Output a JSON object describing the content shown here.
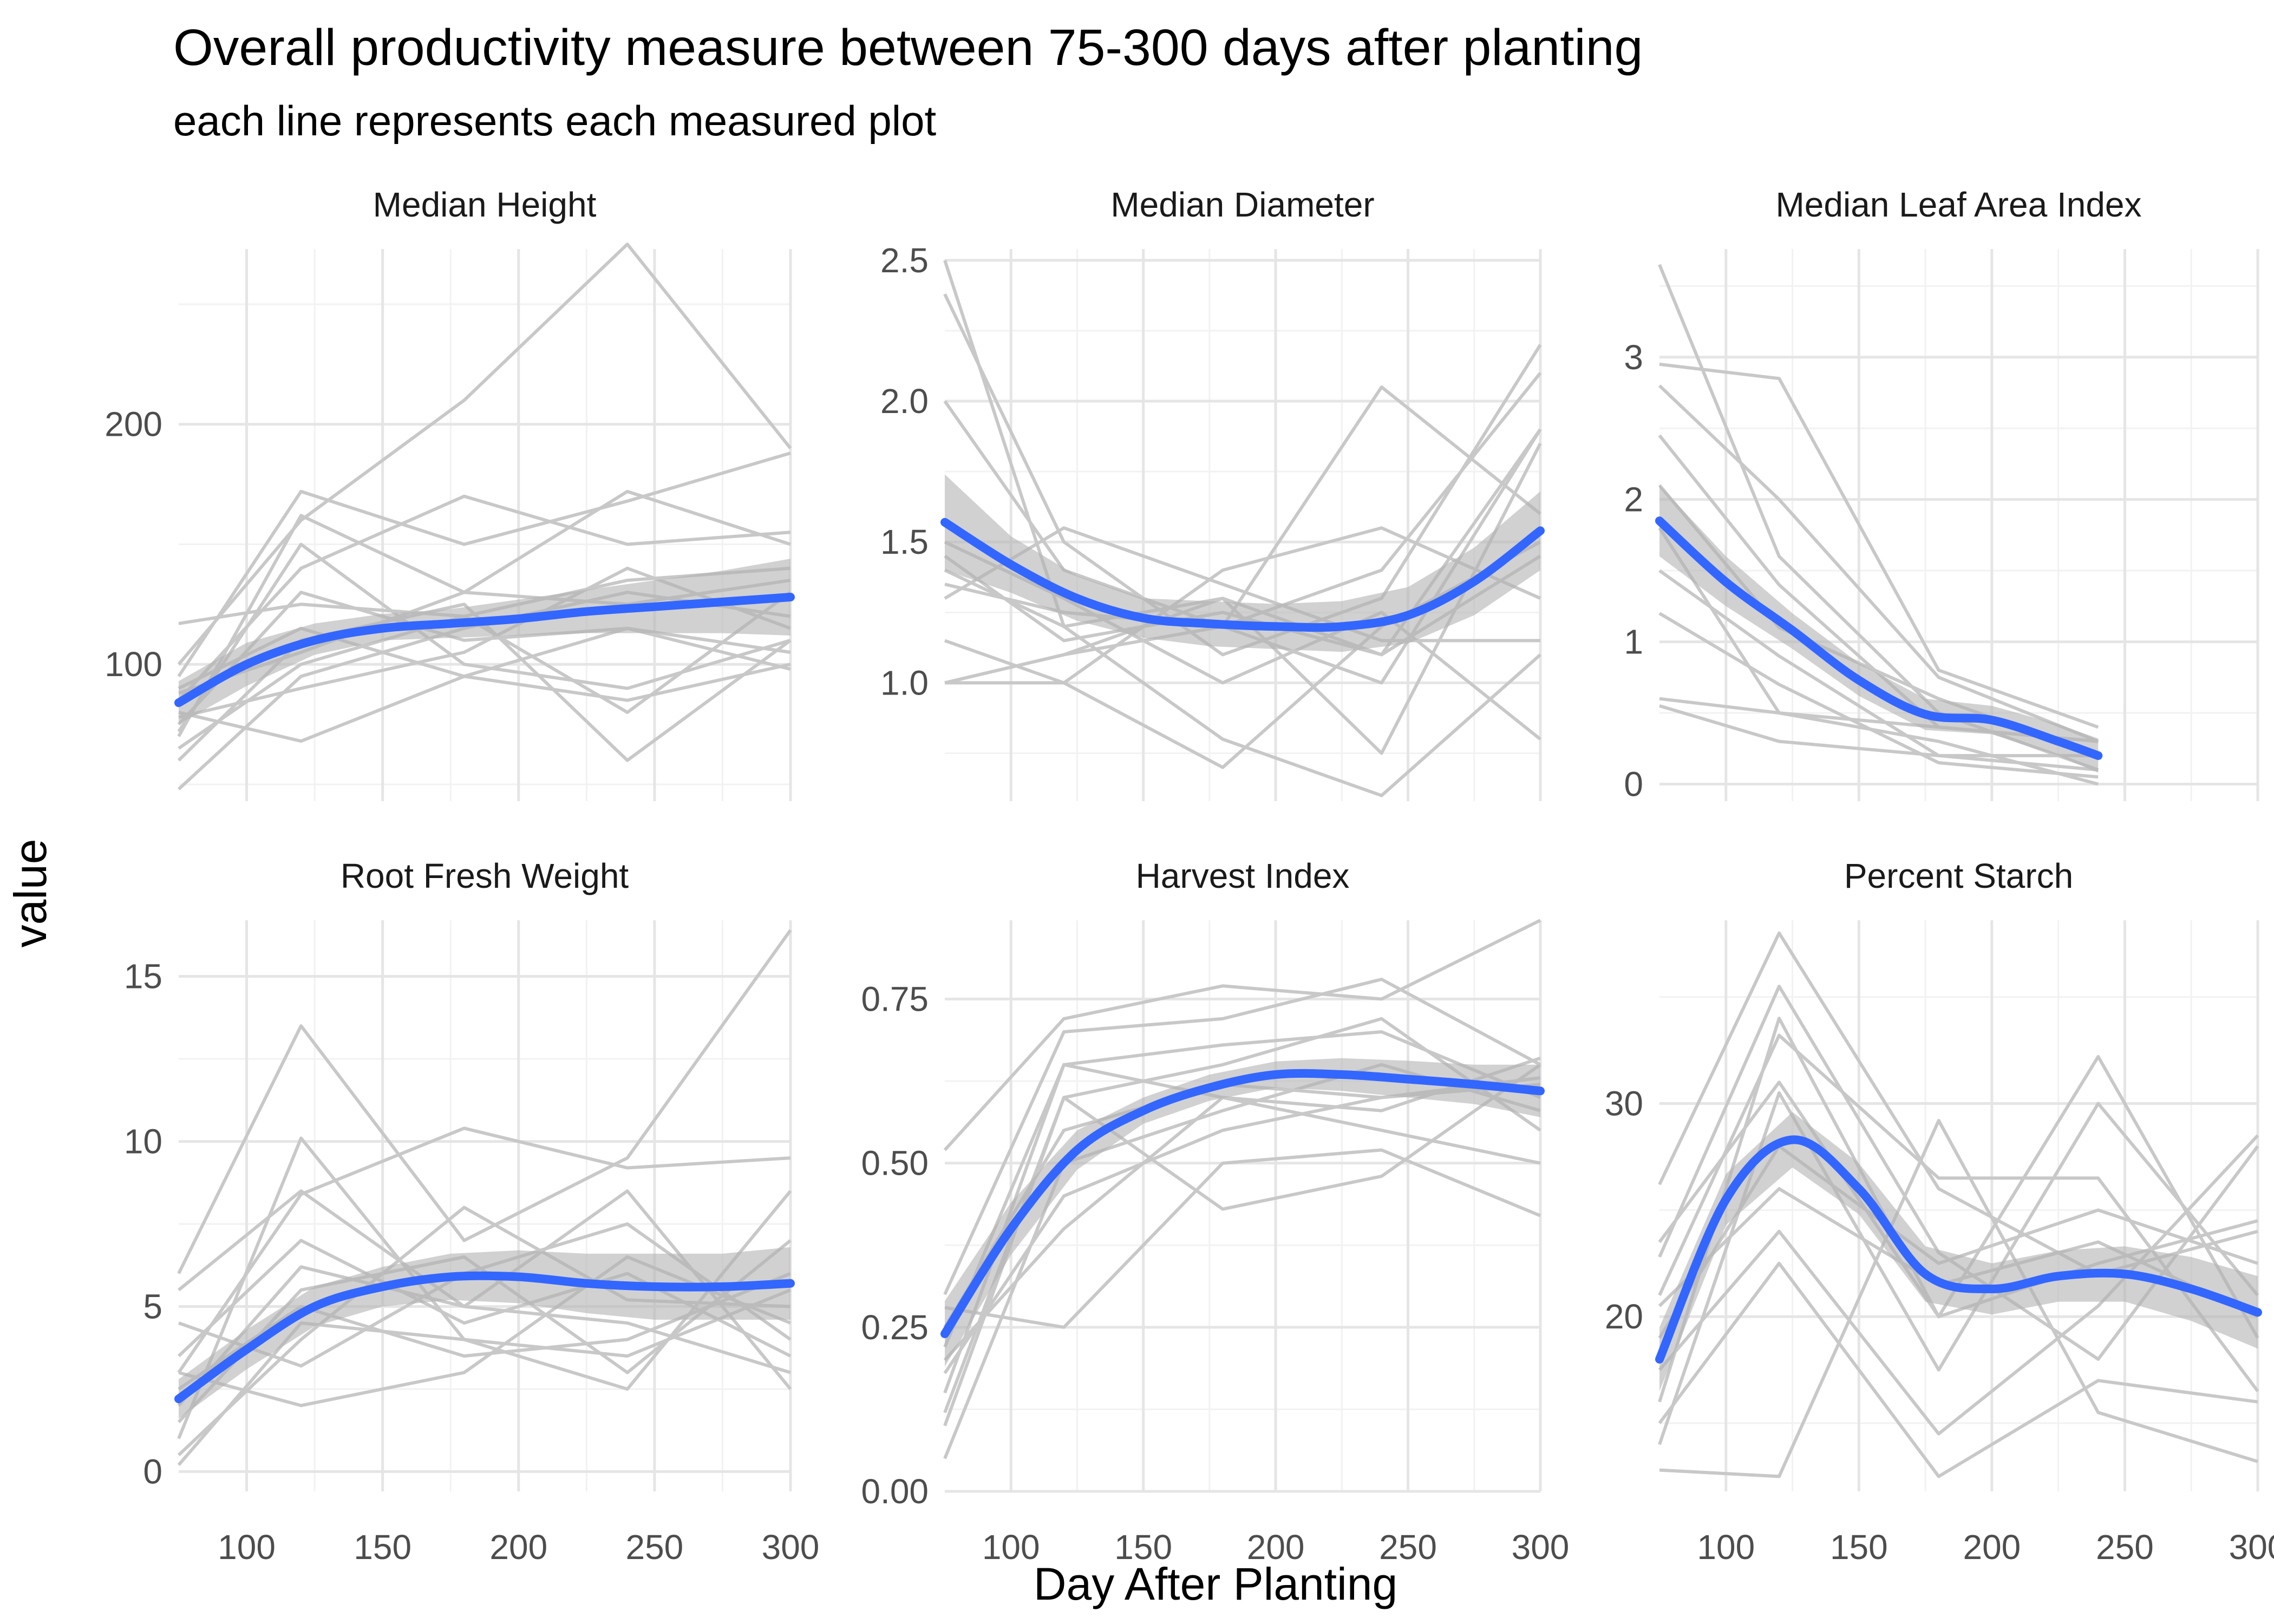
{
  "header": {
    "title": "Overall productivity measure between 75-300 days after planting",
    "subtitle": "each line represents each measured plot"
  },
  "axes": {
    "xlabel": "Day After Planting",
    "ylabel": "value"
  },
  "colors": {
    "plot_lines": "#c8c8c8",
    "smooth": "#3366ff",
    "ribbon": "#b3b3b3",
    "grid_major": "#e5e5e5",
    "grid_minor": "#f2f2f2"
  },
  "chart_data": [
    {
      "type": "line",
      "title": "Median Height",
      "x": [
        75,
        120,
        180,
        240,
        300
      ],
      "xlim": [
        75,
        300
      ],
      "ylim": [
        43,
        273
      ],
      "yticks": [
        100,
        200
      ],
      "ytick_labels": [
        "100",
        "200"
      ],
      "smooth": {
        "x": [
          75,
          100,
          125,
          150,
          175,
          200,
          225,
          250,
          275,
          300
        ],
        "y": [
          84,
          100,
          110,
          115,
          117,
          119,
          122,
          124,
          126,
          128
        ],
        "lower": [
          75,
          91,
          104,
          110,
          111,
          112,
          113,
          113,
          113,
          112
        ],
        "upper": [
          93,
          109,
          117,
          121,
          123,
          127,
          131,
          135,
          139,
          144
        ]
      },
      "series": [
        {
          "values": [
            100,
            160,
            210,
            275,
            190
          ]
        },
        {
          "values": [
            95,
            172,
            150,
            168,
            188
          ]
        },
        {
          "values": [
            70,
            162,
            130,
            172,
            150
          ]
        },
        {
          "values": [
            85,
            140,
            170,
            150,
            155
          ]
        },
        {
          "values": [
            117,
            125,
            120,
            135,
            140
          ]
        },
        {
          "values": [
            60,
            110,
            125,
            60,
            110
          ]
        },
        {
          "values": [
            48,
            95,
            115,
            130,
            120
          ]
        },
        {
          "values": [
            80,
            68,
            95,
            115,
            98
          ]
        },
        {
          "values": [
            75,
            130,
            110,
            115,
            105
          ]
        },
        {
          "values": [
            90,
            115,
            95,
            85,
            100
          ]
        },
        {
          "values": [
            65,
            100,
            120,
            80,
            130
          ]
        },
        {
          "values": [
            78,
            90,
            105,
            140,
            115
          ]
        },
        {
          "values": [
            72,
            150,
            100,
            90,
            110
          ]
        },
        {
          "values": [
            88,
            105,
            130,
            125,
            135
          ]
        }
      ]
    },
    {
      "type": "line",
      "title": "Median Diameter",
      "x": [
        75,
        120,
        180,
        240,
        300
      ],
      "xlim": [
        75,
        300
      ],
      "ylim": [
        0.58,
        2.54
      ],
      "yticks": [
        1.0,
        1.5,
        2.0,
        2.5
      ],
      "ytick_labels": [
        "1.0",
        "1.5",
        "2.0",
        "2.5"
      ],
      "smooth": {
        "x": [
          75,
          100,
          125,
          150,
          175,
          200,
          225,
          250,
          275,
          300
        ],
        "y": [
          1.57,
          1.42,
          1.3,
          1.23,
          1.21,
          1.2,
          1.2,
          1.24,
          1.36,
          1.54
        ],
        "lower": [
          1.4,
          1.32,
          1.22,
          1.16,
          1.13,
          1.12,
          1.11,
          1.14,
          1.24,
          1.4
        ],
        "upper": [
          1.74,
          1.52,
          1.38,
          1.3,
          1.29,
          1.28,
          1.29,
          1.34,
          1.48,
          1.68
        ]
      },
      "series": [
        {
          "values": [
            2.5,
            1.2,
            1.3,
            1.1,
            1.9
          ]
        },
        {
          "values": [
            2.38,
            1.5,
            1.1,
            1.3,
            2.2
          ]
        },
        {
          "values": [
            2.0,
            1.4,
            1.2,
            2.05,
            1.6
          ]
        },
        {
          "values": [
            1.15,
            1.0,
            0.7,
            1.2,
            1.5
          ]
        },
        {
          "values": [
            1.0,
            1.1,
            1.3,
            0.75,
            1.85
          ]
        },
        {
          "values": [
            1.4,
            1.2,
            0.8,
            0.6,
            1.1
          ]
        },
        {
          "values": [
            1.35,
            1.25,
            1.2,
            1.4,
            2.1
          ]
        },
        {
          "values": [
            1.0,
            1.0,
            1.4,
            1.55,
            1.3
          ]
        },
        {
          "values": [
            1.5,
            1.3,
            1.0,
            1.25,
            0.8
          ]
        },
        {
          "values": [
            1.3,
            1.55,
            1.35,
            1.15,
            1.15
          ]
        },
        {
          "values": [
            1.0,
            1.1,
            1.2,
            1.0,
            1.9
          ]
        },
        {
          "values": [
            1.45,
            1.15,
            1.25,
            1.1,
            1.45
          ]
        }
      ]
    },
    {
      "type": "line",
      "title": "Median Leaf Area Index",
      "x": [
        75,
        120,
        180,
        240
      ],
      "xlim": [
        75,
        300
      ],
      "ylim": [
        -0.12,
        3.76
      ],
      "yticks": [
        0,
        1,
        2,
        3
      ],
      "ytick_labels": [
        "0",
        "1",
        "2",
        "3"
      ],
      "smooth": {
        "x": [
          75,
          100,
          125,
          150,
          175,
          200,
          225,
          240
        ],
        "y": [
          1.85,
          1.42,
          1.08,
          0.73,
          0.49,
          0.45,
          0.3,
          0.2
        ],
        "lower": [
          1.6,
          1.25,
          0.95,
          0.62,
          0.38,
          0.35,
          0.2,
          0.08
        ],
        "upper": [
          2.1,
          1.6,
          1.2,
          0.85,
          0.6,
          0.55,
          0.42,
          0.32
        ]
      },
      "series": [
        {
          "values": [
            3.65,
            1.6,
            0.5,
            0.1
          ]
        },
        {
          "values": [
            2.95,
            2.85,
            0.8,
            0.4
          ]
        },
        {
          "values": [
            2.8,
            2.0,
            0.75,
            0.3
          ]
        },
        {
          "values": [
            2.45,
            1.4,
            0.4,
            0.3
          ]
        },
        {
          "values": [
            2.1,
            1.1,
            0.6,
            0.2
          ]
        },
        {
          "values": [
            1.8,
            0.5,
            0.3,
            0.0
          ]
        },
        {
          "values": [
            1.5,
            0.9,
            0.2,
            0.2
          ]
        },
        {
          "values": [
            0.6,
            0.5,
            0.4,
            0.3
          ]
        },
        {
          "values": [
            0.55,
            0.3,
            0.2,
            0.1
          ]
        },
        {
          "values": [
            1.2,
            0.7,
            0.15,
            0.05
          ]
        }
      ]
    },
    {
      "type": "line",
      "title": "Root Fresh Weight",
      "x": [
        75,
        120,
        180,
        240,
        300
      ],
      "xlim": [
        75,
        300
      ],
      "ylim": [
        -0.6,
        16.7
      ],
      "yticks": [
        0,
        5,
        10,
        15
      ],
      "ytick_labels": [
        "0",
        "5",
        "10",
        "15"
      ],
      "smooth": {
        "x": [
          75,
          100,
          125,
          150,
          175,
          200,
          225,
          250,
          275,
          300
        ],
        "y": [
          2.2,
          3.7,
          5.0,
          5.6,
          5.9,
          5.9,
          5.7,
          5.6,
          5.6,
          5.7
        ],
        "lower": [
          1.6,
          3.1,
          4.4,
          5.0,
          5.2,
          5.1,
          4.8,
          4.6,
          4.6,
          4.6
        ],
        "upper": [
          2.8,
          4.3,
          5.6,
          6.2,
          6.6,
          6.7,
          6.6,
          6.6,
          6.6,
          6.8
        ]
      },
      "series": [
        {
          "values": [
            6.0,
            13.5,
            7.0,
            9.5,
            16.4
          ]
        },
        {
          "values": [
            1.0,
            10.1,
            4.0,
            2.5,
            8.5
          ]
        },
        {
          "values": [
            3.0,
            8.4,
            10.4,
            9.2,
            9.5
          ]
        },
        {
          "values": [
            2.0,
            6.2,
            5.0,
            8.5,
            2.5
          ]
        },
        {
          "values": [
            0.5,
            4.0,
            8.0,
            5.2,
            5.0
          ]
        },
        {
          "values": [
            3.5,
            7.0,
            4.5,
            6.0,
            3.5
          ]
        },
        {
          "values": [
            1.5,
            5.5,
            6.5,
            3.0,
            7.0
          ]
        },
        {
          "values": [
            4.5,
            3.2,
            6.0,
            7.5,
            4.0
          ]
        },
        {
          "values": [
            2.5,
            5.0,
            3.5,
            4.0,
            6.0
          ]
        },
        {
          "values": [
            0.2,
            4.5,
            4.0,
            3.5,
            5.5
          ]
        },
        {
          "values": [
            5.5,
            8.5,
            5.0,
            4.5,
            3.0
          ]
        },
        {
          "values": [
            3.0,
            2.0,
            3.0,
            6.5,
            4.5
          ]
        }
      ]
    },
    {
      "type": "line",
      "title": "Harvest Index",
      "x": [
        75,
        120,
        180,
        240,
        300
      ],
      "xlim": [
        75,
        300
      ],
      "ylim": [
        0,
        0.87
      ],
      "yticks": [
        0.0,
        0.25,
        0.5,
        0.75
      ],
      "ytick_labels": [
        "0.00",
        "0.25",
        "0.50",
        "0.75"
      ],
      "smooth": {
        "x": [
          75,
          100,
          125,
          150,
          175,
          200,
          225,
          250,
          275,
          300
        ],
        "y": [
          0.24,
          0.4,
          0.52,
          0.58,
          0.615,
          0.635,
          0.635,
          0.628,
          0.62,
          0.61
        ],
        "lower": [
          0.19,
          0.36,
          0.49,
          0.56,
          0.595,
          0.615,
          0.61,
          0.6,
          0.59,
          0.57
        ],
        "upper": [
          0.29,
          0.44,
          0.55,
          0.6,
          0.635,
          0.655,
          0.66,
          0.656,
          0.65,
          0.65
        ]
      },
      "series": [
        {
          "values": [
            0.52,
            0.72,
            0.77,
            0.75,
            0.87
          ]
        },
        {
          "values": [
            0.3,
            0.7,
            0.72,
            0.78,
            0.65
          ]
        },
        {
          "values": [
            0.15,
            0.65,
            0.68,
            0.7,
            0.6
          ]
        },
        {
          "values": [
            0.1,
            0.6,
            0.65,
            0.72,
            0.55
          ]
        },
        {
          "values": [
            0.25,
            0.55,
            0.62,
            0.6,
            0.62
          ]
        },
        {
          "values": [
            0.05,
            0.5,
            0.58,
            0.65,
            0.58
          ]
        },
        {
          "values": [
            0.2,
            0.4,
            0.6,
            0.55,
            0.5
          ]
        },
        {
          "values": [
            0.28,
            0.25,
            0.5,
            0.52,
            0.42
          ]
        },
        {
          "values": [
            0.12,
            0.6,
            0.43,
            0.48,
            0.65
          ]
        },
        {
          "values": [
            0.18,
            0.45,
            0.55,
            0.6,
            0.63
          ]
        },
        {
          "values": [
            0.22,
            0.65,
            0.6,
            0.58,
            0.66
          ]
        }
      ]
    },
    {
      "type": "line",
      "title": "Percent Starch",
      "x": [
        75,
        120,
        180,
        240,
        300
      ],
      "xlim": [
        75,
        300
      ],
      "ylim": [
        11.8,
        38.6
      ],
      "yticks": [
        20,
        30
      ],
      "ytick_labels": [
        "20",
        "30"
      ],
      "smooth": {
        "x": [
          75,
          100,
          125,
          150,
          175,
          200,
          225,
          250,
          275,
          300
        ],
        "y": [
          18.0,
          25.5,
          28.3,
          26.0,
          22.0,
          21.3,
          21.9,
          22.0,
          21.3,
          20.2
        ],
        "lower": [
          16.5,
          24.3,
          27.0,
          24.8,
          20.7,
          20.1,
          20.7,
          20.7,
          19.8,
          18.5
        ],
        "upper": [
          19.5,
          26.7,
          29.6,
          27.2,
          23.3,
          22.5,
          23.1,
          23.3,
          22.8,
          21.9
        ]
      },
      "series": [
        {
          "values": [
            26.2,
            38.0,
            26.0,
            22.0,
            24.0
          ]
        },
        {
          "values": [
            22.8,
            35.5,
            23.0,
            18.0,
            28.0
          ]
        },
        {
          "values": [
            16.0,
            34.0,
            20.0,
            32.2,
            19.0
          ]
        },
        {
          "values": [
            21.0,
            33.2,
            26.5,
            26.5,
            16.5
          ]
        },
        {
          "values": [
            14.0,
            30.5,
            17.5,
            30.0,
            21.0
          ]
        },
        {
          "values": [
            12.8,
            12.5,
            29.2,
            15.5,
            13.2
          ]
        },
        {
          "values": [
            19.0,
            28.0,
            22.5,
            25.0,
            22.5
          ]
        },
        {
          "values": [
            17.5,
            24.0,
            14.5,
            20.5,
            28.5
          ]
        },
        {
          "values": [
            15.0,
            22.5,
            12.5,
            17.0,
            16.0
          ]
        },
        {
          "values": [
            20.5,
            26.0,
            21.5,
            23.5,
            20.0
          ]
        },
        {
          "values": [
            23.5,
            31.0,
            20.0,
            22.5,
            24.5
          ]
        }
      ]
    }
  ]
}
